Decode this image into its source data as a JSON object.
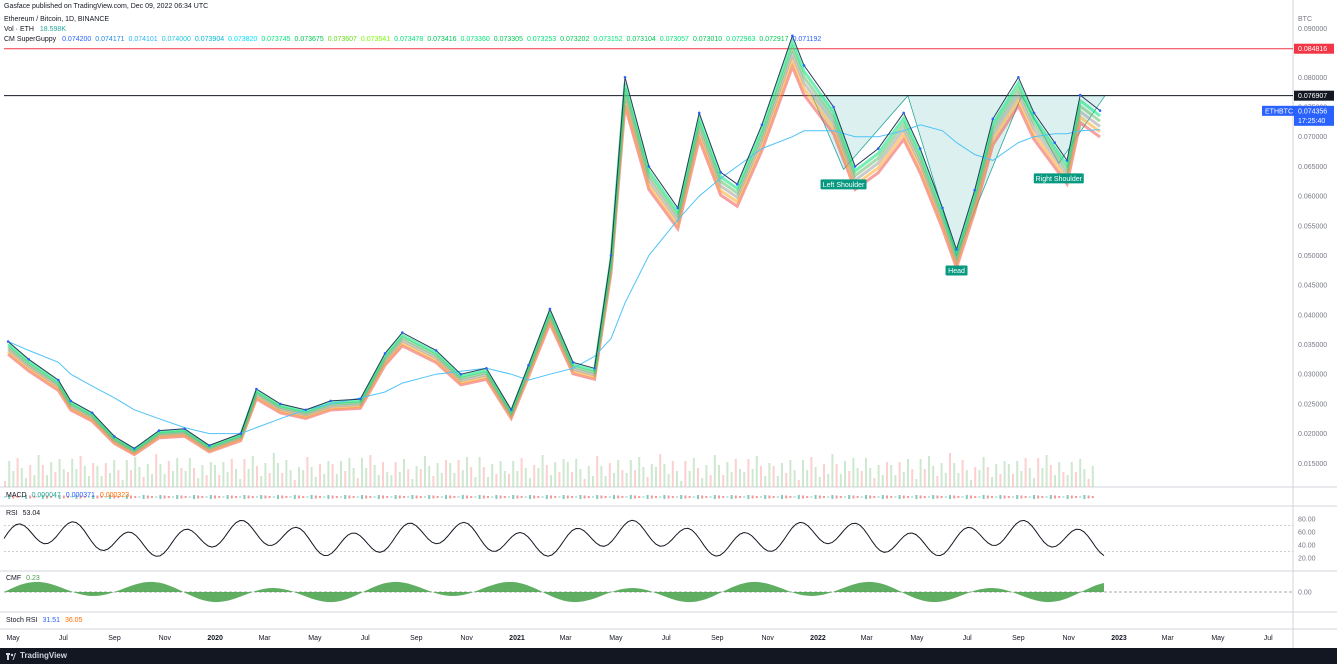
{
  "header": {
    "published_by": "Gasface published on TradingView.com, Dec 09, 2022 06:34 UTC",
    "symbol_line": "Ethereum / Bitcoin, 1D, BINANCE",
    "vol_label": "Vol · ETH",
    "vol_value": "18.598K",
    "indicator_name": "CM SuperGuppy",
    "indicator_values": [
      "0.074200",
      "0.074171",
      "0.074101",
      "0.074000",
      "0.073904",
      "0.073820",
      "0.073745",
      "0.073675",
      "0.073607",
      "0.073541",
      "0.073478",
      "0.073416",
      "0.073360",
      "0.073305",
      "0.073253",
      "0.073202",
      "0.073152",
      "0.073104",
      "0.073057",
      "0.073010",
      "0.072963",
      "0.072917",
      "0.071192"
    ]
  },
  "price_axis": {
    "unit": "BTC",
    "top_label": "0.090000",
    "ticks": [
      "0.080000",
      "0.075000",
      "0.070000",
      "0.065000",
      "0.060000",
      "0.055000",
      "0.050000",
      "0.045000",
      "0.040000",
      "0.035000",
      "0.030000",
      "0.025000",
      "0.020000",
      "0.015000"
    ],
    "red_line_label": "0.084816",
    "black_line_label": "0.076907",
    "current_symbol": "ETHBTC",
    "current_price": "0.074356",
    "countdown": "17:25:40",
    "red_line_color": "#f23645",
    "black_line_color": "#131722",
    "current_color": "#2962ff"
  },
  "patterns": {
    "left_shoulder": "Left Shoulder",
    "head": "Head",
    "right_shoulder": "Right Shoulder",
    "label_color": "#089981"
  },
  "macd": {
    "label": "MACD",
    "values": [
      "0.000047",
      "0.000371",
      "0.000323"
    ],
    "colors": [
      "#26a69a",
      "#2962ff",
      "#ff6d00"
    ]
  },
  "rsi": {
    "label": "RSI",
    "value": "53.04",
    "ticks": [
      "80.00",
      "60.00",
      "40.00",
      "20.00"
    ]
  },
  "cmf": {
    "label": "CMF",
    "value": "0.23",
    "zero_tick": "0.00"
  },
  "stoch_rsi": {
    "label": "Stoch RSI",
    "values": [
      "31.51",
      "36.05"
    ],
    "colors": [
      "#2962ff",
      "#ff6d00"
    ]
  },
  "time_axis": [
    "May",
    "Jul",
    "Sep",
    "Nov",
    "2020",
    "Mar",
    "May",
    "Jul",
    "Sep",
    "Nov",
    "2021",
    "Mar",
    "May",
    "Jul",
    "Sep",
    "Nov",
    "2022",
    "Mar",
    "May",
    "Jul",
    "Sep",
    "Nov",
    "2023",
    "Mar",
    "May",
    "Jul"
  ],
  "time_axis_bold": [
    "2020",
    "2021",
    "2022",
    "2023"
  ],
  "footer": {
    "brand": "TradingView"
  },
  "chart_data": {
    "type": "line",
    "title": "Ethereum / Bitcoin, 1D, BINANCE",
    "ylabel": "BTC",
    "ylim": [
      0.011,
      0.091
    ],
    "x": [
      "2019-04-25",
      "2019-05-20",
      "2019-06-25",
      "2019-07-10",
      "2019-08-05",
      "2019-09-01",
      "2019-09-25",
      "2019-10-25",
      "2019-11-25",
      "2019-12-25",
      "2020-02-01",
      "2020-02-20",
      "2020-03-20",
      "2020-04-20",
      "2020-05-20",
      "2020-06-25",
      "2020-07-25",
      "2020-08-15",
      "2020-09-25",
      "2020-10-25",
      "2020-11-25",
      "2020-12-25",
      "2021-01-15",
      "2021-02-10",
      "2021-03-10",
      "2021-04-05",
      "2021-04-25",
      "2021-05-12",
      "2021-06-10",
      "2021-07-15",
      "2021-08-10",
      "2021-09-05",
      "2021-09-25",
      "2021-10-25",
      "2021-12-01",
      "2021-12-15",
      "2022-01-20",
      "2022-02-15",
      "2022-03-15",
      "2022-04-15",
      "2022-05-05",
      "2022-06-01",
      "2022-06-18",
      "2022-07-10",
      "2022-08-01",
      "2022-09-01",
      "2022-09-20",
      "2022-10-15",
      "2022-10-30",
      "2022-11-15",
      "2022-12-09"
    ],
    "series": [
      {
        "values": [
          0.0355,
          0.0325,
          0.029,
          0.0255,
          0.0235,
          0.0195,
          0.0175,
          0.0205,
          0.0208,
          0.018,
          0.02,
          0.0275,
          0.025,
          0.024,
          0.0255,
          0.0258,
          0.0335,
          0.037,
          0.034,
          0.03,
          0.031,
          0.024,
          0.0315,
          0.041,
          0.032,
          0.031,
          0.05,
          0.08,
          0.065,
          0.058,
          0.074,
          0.064,
          0.062,
          0.072,
          0.087,
          0.082,
          0.075,
          0.065,
          0.068,
          0.074,
          0.068,
          0.058,
          0.051,
          0.061,
          0.073,
          0.08,
          0.074,
          0.069,
          0.066,
          0.077,
          0.0744
        ]
      }
    ],
    "moving_average_values": [
      0.0355,
      0.034,
      0.032,
      0.03,
      0.028,
      0.026,
      0.024,
      0.0225,
      0.021,
      0.02,
      0.02,
      0.021,
      0.0225,
      0.024,
      0.025,
      0.026,
      0.027,
      0.0285,
      0.03,
      0.0305,
      0.031,
      0.03,
      0.029,
      0.03,
      0.031,
      0.033,
      0.036,
      0.042,
      0.05,
      0.056,
      0.06,
      0.063,
      0.065,
      0.068,
      0.07,
      0.071,
      0.071,
      0.07,
      0.07,
      0.071,
      0.072,
      0.071,
      0.069,
      0.067,
      0.066,
      0.069,
      0.07,
      0.0705,
      0.0705,
      0.071,
      0.0712
    ],
    "horizontal_lines": [
      0.084816,
      0.076907
    ],
    "pattern": "head-and-shoulders (inverse)",
    "pattern_points": [
      {
        "label": "Left Shoulder",
        "date": "2022-02-01",
        "price": 0.0645
      },
      {
        "label": "Head",
        "date": "2022-06-18",
        "price": 0.05
      },
      {
        "label": "Right Shoulder",
        "date": "2022-10-20",
        "price": 0.0655
      }
    ],
    "grid": false
  }
}
